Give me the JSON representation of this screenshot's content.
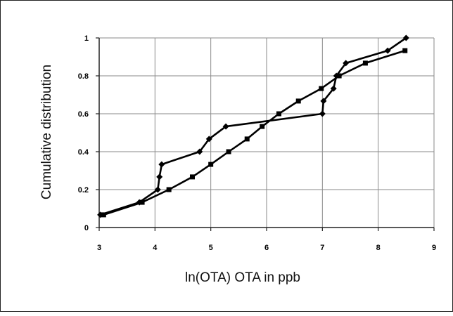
{
  "chart_data": {
    "type": "line",
    "title": "",
    "xlabel": "ln(OTA) OTA in ppb",
    "ylabel": "Cumulative distribution",
    "xlim": [
      3,
      9
    ],
    "ylim": [
      0,
      1
    ],
    "x_ticks": [
      "3",
      "4",
      "5",
      "6",
      "7",
      "8",
      "9"
    ],
    "y_ticks": [
      "0",
      "0.2",
      "0.4",
      "0.6",
      "0.8",
      "1"
    ],
    "grid": true,
    "legend": "none",
    "series": [
      {
        "marker": "diamond",
        "color": "#000000",
        "x": [
          3.02,
          3.72,
          4.05,
          4.08,
          4.12,
          4.8,
          4.97,
          5.27,
          7.0,
          7.02,
          7.2,
          7.25,
          7.42,
          8.17,
          8.5
        ],
        "y": [
          0.067,
          0.133,
          0.2,
          0.267,
          0.333,
          0.4,
          0.467,
          0.533,
          0.6,
          0.667,
          0.733,
          0.8,
          0.867,
          0.933,
          1.0
        ]
      },
      {
        "marker": "square",
        "color": "#000000",
        "x": [
          3.08,
          3.77,
          4.25,
          4.67,
          5.0,
          5.32,
          5.65,
          5.92,
          6.22,
          6.57,
          6.98,
          7.3,
          7.77,
          8.48
        ],
        "y": [
          0.067,
          0.133,
          0.2,
          0.267,
          0.333,
          0.4,
          0.467,
          0.533,
          0.6,
          0.667,
          0.733,
          0.8,
          0.867,
          0.933
        ]
      }
    ]
  }
}
